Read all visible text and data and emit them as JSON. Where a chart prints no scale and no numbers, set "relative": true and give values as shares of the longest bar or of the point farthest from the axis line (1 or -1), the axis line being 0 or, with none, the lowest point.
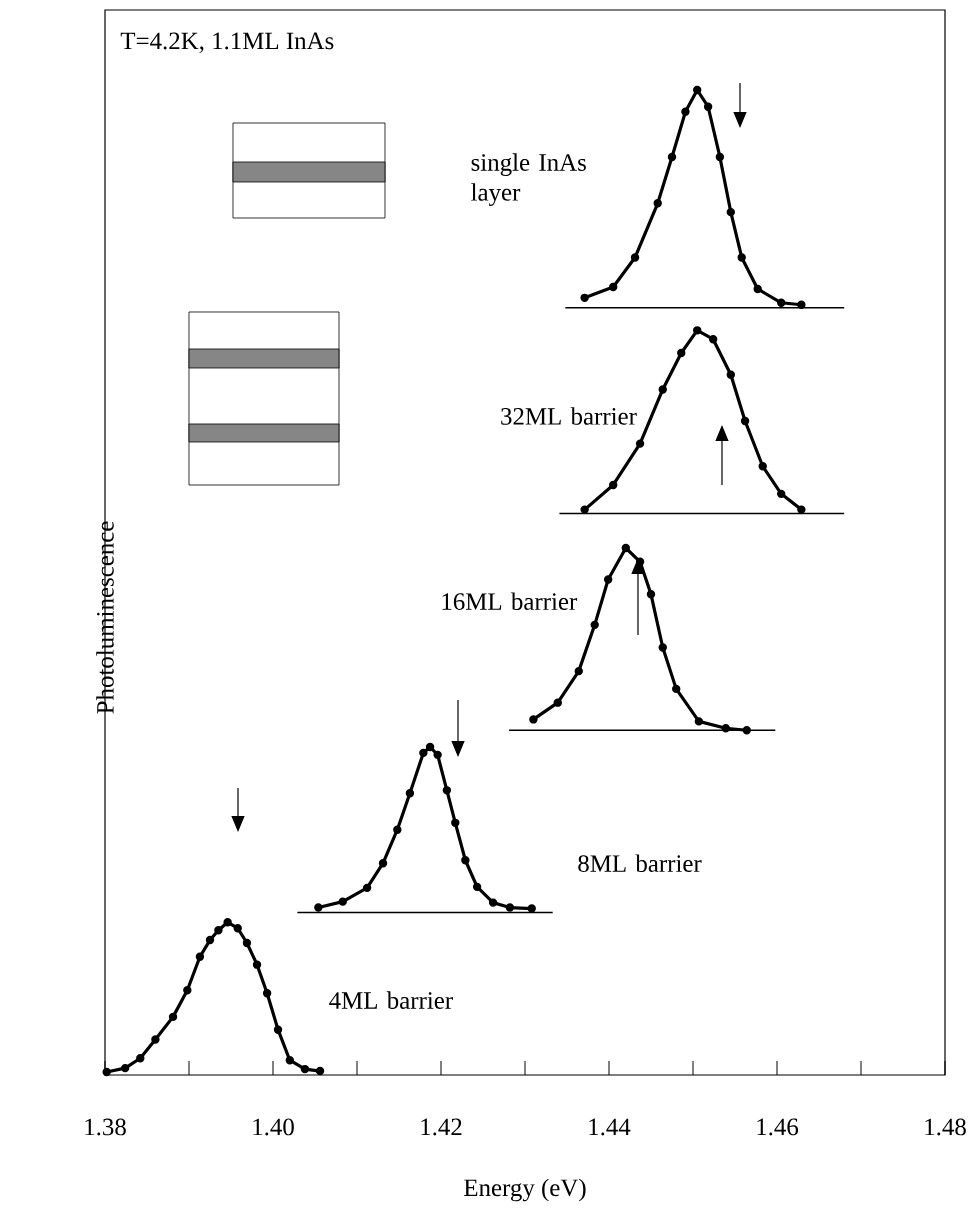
{
  "chart_data": {
    "type": "line",
    "relative": true,
    "xlabel": "Energy (eV)",
    "ylabel": "Photoluminescence",
    "xlim": [
      1.38,
      1.48
    ],
    "xticks": [
      1.38,
      {
        "value": 1.39,
        "label": null
      },
      "1.40",
      {
        "value": 1.41,
        "label": null
      },
      1.42,
      {
        "value": 1.43,
        "label": null
      },
      1.44,
      {
        "value": 1.45,
        "label": null
      },
      1.46,
      {
        "value": 1.47,
        "label": null
      },
      1.48
    ],
    "annotations": [
      "T=4.2K, 1.1ML InAs"
    ],
    "marker": "circle",
    "grid": false,
    "series": [
      {
        "name": "single InAs layer",
        "color": "#000000",
        "x": [
          1.4371,
          1.4405,
          1.4431,
          1.4458,
          1.4475,
          1.4491,
          1.4505,
          1.4518,
          1.4532,
          1.4545,
          1.4558,
          1.4577,
          1.4605,
          1.4629
        ],
        "values": [
          0.789,
          0.8,
          0.83,
          0.885,
          0.932,
          0.978,
          1.0,
          0.983,
          0.932,
          0.876,
          0.83,
          0.798,
          0.784,
          0.782
        ]
      },
      {
        "name": "32ML barrier",
        "color": "#000000",
        "x": [
          1.4371,
          1.4405,
          1.4437,
          1.4464,
          1.4486,
          1.4505,
          1.4524,
          1.4545,
          1.4562,
          1.4583,
          1.4605,
          1.4629
        ],
        "values": [
          0.574,
          0.599,
          0.641,
          0.696,
          0.733,
          0.756,
          0.747,
          0.711,
          0.664,
          0.618,
          0.59,
          0.574
        ]
      },
      {
        "name": "16ML barrier",
        "color": "#000000",
        "x": [
          1.431,
          1.4339,
          1.4364,
          1.4383,
          1.4399,
          1.442,
          1.4437,
          1.445,
          1.4464,
          1.448,
          1.4507,
          1.4539,
          1.4564
        ],
        "values": [
          0.361,
          0.378,
          0.41,
          0.457,
          0.503,
          0.535,
          0.521,
          0.488,
          0.434,
          0.392,
          0.359,
          0.352,
          0.35
        ]
      },
      {
        "name": "8ML barrier",
        "color": "#000000",
        "x": [
          1.4054,
          1.4083,
          1.4112,
          1.4131,
          1.4148,
          1.4163,
          1.4179,
          1.4187,
          1.4196,
          1.4207,
          1.4217,
          1.4229,
          1.4243,
          1.4262,
          1.4282,
          1.4308
        ],
        "values": [
          0.17,
          0.176,
          0.19,
          0.215,
          0.249,
          0.286,
          0.327,
          0.333,
          0.325,
          0.289,
          0.256,
          0.218,
          0.191,
          0.175,
          0.17,
          0.169
        ]
      },
      {
        "name": "4ML barrier",
        "color": "#000000",
        "x": [
          1.3802,
          1.3824,
          1.3842,
          1.386,
          1.3881,
          1.3898,
          1.3913,
          1.3925,
          1.3935,
          1.3946,
          1.3958,
          1.3969,
          1.3981,
          1.3993,
          1.4006,
          1.402,
          1.4038,
          1.4056
        ],
        "values": [
          0.003,
          0.007,
          0.017,
          0.036,
          0.059,
          0.086,
          0.12,
          0.137,
          0.147,
          0.155,
          0.149,
          0.134,
          0.112,
          0.083,
          0.046,
          0.015,
          0.006,
          0.004
        ]
      },
      {
        "color": "#000000",
        "marker": "none",
        "x": [
          1.4348,
          1.468
        ],
        "values": [
          0.779,
          0.779
        ]
      },
      {
        "color": "#000000",
        "marker": "none",
        "x": [
          1.4341,
          1.468
        ],
        "values": [
          0.57,
          0.57
        ]
      },
      {
        "color": "#000000",
        "marker": "none",
        "x": [
          1.4281,
          1.4598
        ],
        "values": [
          0.35,
          0.35
        ]
      },
      {
        "color": "#000000",
        "marker": "none",
        "x": [
          1.4029,
          1.4333
        ],
        "values": [
          0.165,
          0.165
        ]
      }
    ]
  }
}
